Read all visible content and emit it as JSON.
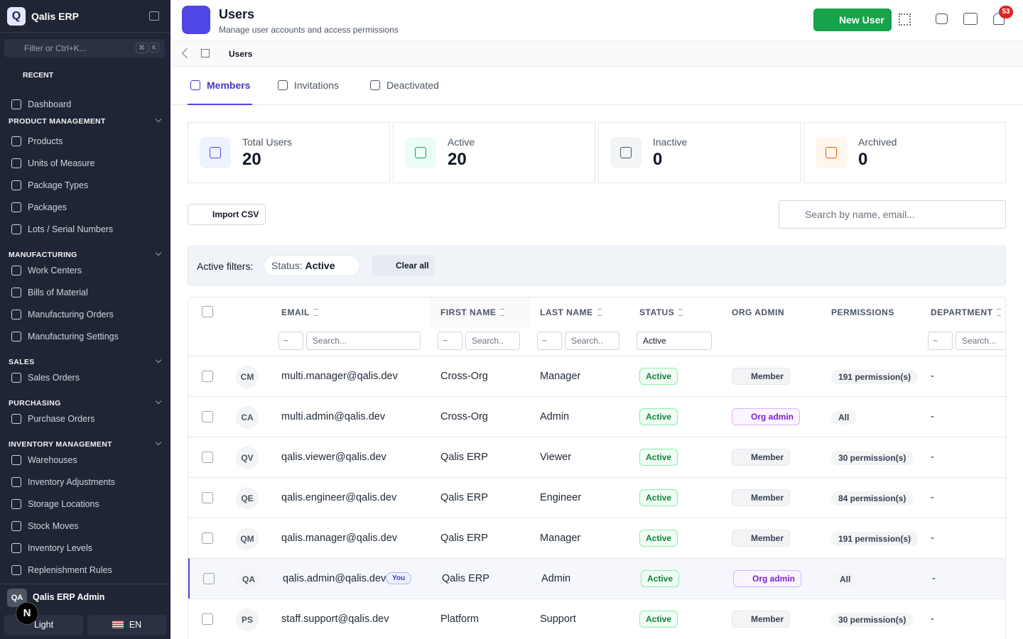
{
  "sidebar": {
    "logo": "Q",
    "app_name": "Qalis ERP",
    "filter_placeholder": "Filter or Ctrl+K...",
    "shortcut": [
      "⌘",
      "K"
    ],
    "recent": "RECENT",
    "top_items": [
      "Dashboard"
    ],
    "sections": [
      {
        "title": "PRODUCT MANAGEMENT",
        "items": [
          "Products",
          "Units of Measure",
          "Package Types",
          "Packages",
          "Lots / Serial Numbers"
        ]
      },
      {
        "title": "MANUFACTURING",
        "items": [
          "Work Centers",
          "Bills of Material",
          "Manufacturing Orders",
          "Manufacturing Settings"
        ]
      },
      {
        "title": "SALES",
        "items": [
          "Sales Orders"
        ]
      },
      {
        "title": "PURCHASING",
        "items": [
          "Purchase Orders"
        ]
      },
      {
        "title": "INVENTORY MANAGEMENT",
        "items": [
          "Warehouses",
          "Inventory Adjustments",
          "Storage Locations",
          "Stock Moves",
          "Inventory Levels",
          "Replenishment Rules"
        ]
      }
    ],
    "user": {
      "initials": "QA",
      "name": "Qalis ERP Admin"
    },
    "badge": "N",
    "theme": "Light",
    "language": "EN"
  },
  "header": {
    "title": "Users",
    "subtitle": "Manage user accounts and access permissions",
    "new_user": "New User",
    "notification_count": 53
  },
  "breadcrumb": {
    "current": "Users"
  },
  "tabs": [
    "Members",
    "Invitations",
    "Deactivated"
  ],
  "stats": [
    {
      "label": "Total Users",
      "value": 20
    },
    {
      "label": "Active",
      "value": 20
    },
    {
      "label": "Inactive",
      "value": 0
    },
    {
      "label": "Archived",
      "value": 0
    }
  ],
  "toolbar": {
    "import": "Import CSV",
    "search_placeholder": "Search by name, email..."
  },
  "filters": {
    "label": "Active filters:",
    "key": "Status:",
    "value": "Active",
    "clear": "Clear all"
  },
  "table": {
    "columns": [
      "EMAIL",
      "FIRST NAME",
      "LAST NAME",
      "STATUS",
      "ORG ADMIN",
      "PERMISSIONS",
      "DEPARTMENT"
    ],
    "column_filters": [
      {
        "operator": "~",
        "placeholder": "Search..."
      },
      {
        "operator": "~",
        "placeholder": "Search.."
      },
      {
        "operator": "~",
        "placeholder": "Search.."
      },
      {
        "select": "Active"
      },
      null,
      null,
      {
        "operator": "~",
        "placeholder": "Search..."
      }
    ],
    "rows": [
      {
        "initials": "CM",
        "email": "multi.manager@qalis.dev",
        "first_name": "Cross-Org",
        "last_name": "Manager",
        "status": "Active",
        "org_admin": "Member",
        "permissions": "191 permission(s)",
        "department": "-"
      },
      {
        "initials": "CA",
        "email": "multi.admin@qalis.dev",
        "first_name": "Cross-Org",
        "last_name": "Admin",
        "status": "Active",
        "org_admin": "Org admin",
        "permissions": "All",
        "department": "-"
      },
      {
        "initials": "QV",
        "email": "qalis.viewer@qalis.dev",
        "first_name": "Qalis ERP",
        "last_name": "Viewer",
        "status": "Active",
        "org_admin": "Member",
        "permissions": "30 permission(s)",
        "department": "-"
      },
      {
        "initials": "QE",
        "email": "qalis.engineer@qalis.dev",
        "first_name": "Qalis ERP",
        "last_name": "Engineer",
        "status": "Active",
        "org_admin": "Member",
        "permissions": "84 permission(s)",
        "department": "-"
      },
      {
        "initials": "QM",
        "email": "qalis.manager@qalis.dev",
        "first_name": "Qalis ERP",
        "last_name": "Manager",
        "status": "Active",
        "org_admin": "Member",
        "permissions": "191 permission(s)",
        "department": "-"
      },
      {
        "initials": "QA",
        "email": "qalis.admin@qalis.dev",
        "you": "You",
        "first_name": "Qalis ERP",
        "last_name": "Admin",
        "status": "Active",
        "org_admin": "Org admin",
        "permissions": "All",
        "department": "-"
      },
      {
        "initials": "PS",
        "email": "staff.support@qalis.dev",
        "first_name": "Platform",
        "last_name": "Support",
        "status": "Active",
        "org_admin": "Member",
        "permissions": "30 permission(s)",
        "department": "-"
      }
    ]
  }
}
